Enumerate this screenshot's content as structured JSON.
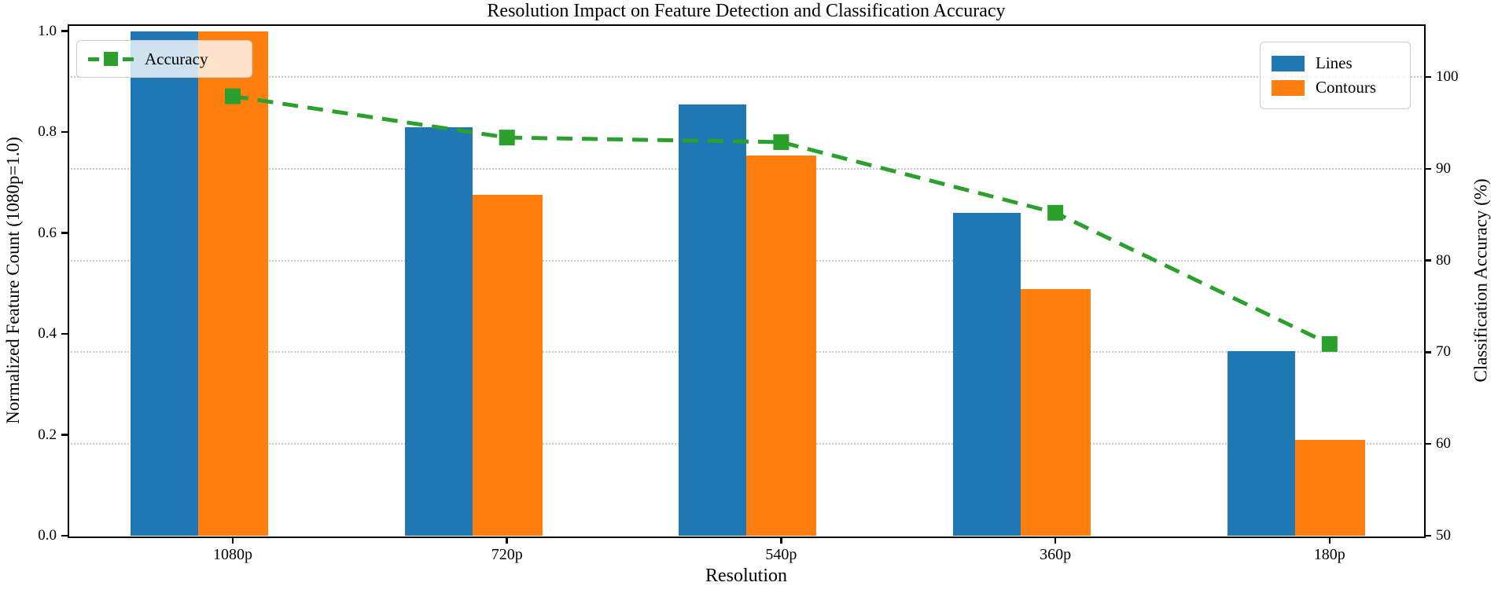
{
  "chart_data": {
    "type": "bar",
    "title": "Resolution Impact on Feature Detection and Classification Accuracy",
    "xlabel": "Resolution",
    "ylabel_left": "Normalized Feature Count (1080p=1.0)",
    "ylabel_right": "Classification Accuracy (%)",
    "categories": [
      "1080p",
      "720p",
      "540p",
      "360p",
      "180p"
    ],
    "series": [
      {
        "name": "Lines",
        "type": "bar",
        "axis": "left",
        "values": [
          1.0,
          0.81,
          0.855,
          0.64,
          0.365
        ]
      },
      {
        "name": "Contours",
        "type": "bar",
        "axis": "left",
        "values": [
          1.0,
          0.675,
          0.753,
          0.489,
          0.19
        ]
      },
      {
        "name": "Accuracy",
        "type": "line",
        "axis": "right",
        "linestyle": "dashed",
        "marker": "square",
        "values": [
          97.9,
          93.4,
          92.9,
          85.2,
          70.9
        ]
      }
    ],
    "left_axis": {
      "ticks": [
        0.0,
        0.2,
        0.4,
        0.6,
        0.8,
        1.0
      ],
      "tick_labels": [
        "0.0",
        "0.2",
        "0.4",
        "0.6",
        "0.8",
        "1.0"
      ],
      "range": [
        0,
        1.01
      ]
    },
    "right_axis": {
      "ticks": [
        50,
        60,
        70,
        80,
        90,
        100
      ],
      "tick_labels": [
        "50",
        "60",
        "70",
        "80",
        "90",
        "100"
      ],
      "range": [
        50,
        105.6
      ]
    },
    "grid": {
      "style": "dotted",
      "follows": "right-y-ticks"
    },
    "legend_upper_left": [
      "Accuracy"
    ],
    "legend_upper_right": [
      "Lines",
      "Contours"
    ]
  },
  "colors": {
    "lines": "#1f77b4",
    "contours": "#ff7f0e",
    "accuracy": "#2ca02c",
    "grid": "#c9c9c9",
    "spine": "#000000"
  }
}
